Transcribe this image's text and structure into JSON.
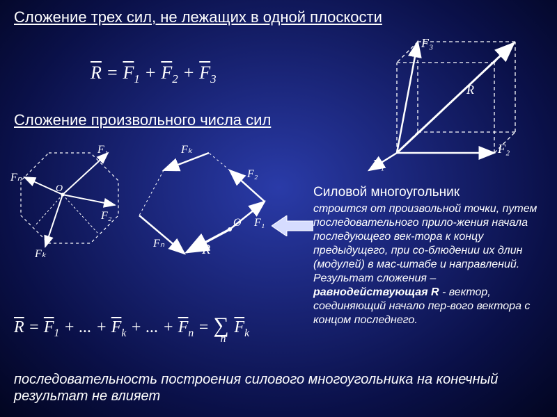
{
  "title": "Сложение трех сил, не лежащих в одной плоскости",
  "formula1_html": "<span class='bar'>R</span> = <span class='bar'>F</span><span class='sub'>1</span> + <span class='bar'>F</span><span class='sub'>2</span> + <span class='bar'>F</span><span class='sub'>3</span>",
  "subtitle": "Сложение произвольного числа сил",
  "cube": {
    "stroke_dash": "#ffffff",
    "stroke_solid": "#ffffff",
    "labels": {
      "F1": "F₁",
      "F2": "F₂",
      "F3": "F₃",
      "R": "R"
    },
    "label_color": "#ffffff"
  },
  "star": {
    "labels": {
      "F1": "F₁",
      "F2": "F₂",
      "Fk": "Fₖ",
      "Fn": "Fₙ",
      "O": "O"
    }
  },
  "polygon": {
    "labels": {
      "F1": "F₁",
      "F2": "F₂",
      "Fk": "Fₖ",
      "Fn": "Fₙ",
      "R": "R",
      "O": "O"
    }
  },
  "right_caption": "Силовой многоугольник",
  "right_body_html": "строится от произвольной точки, путем последовательного прило-жения начала последующего век-тора к концу предыдущего, при со-блюдении их длин (модулей) в мас-штабе и направлений. Результат сложения – <span class='hl'>равнодействующая R</span> - вектор, соединяющий начало пер-вого вектора с концом последнего.",
  "formula2_html": "<span class='bar'>R</span> = <span class='bar'>F</span><span class='sub'>1</span> + ... + <span class='bar'>F</span><span class='sub'>k</span> + ... + <span class='bar'>F</span><span class='sub'>n</span> = <span style='font-size:1.3em'>∑</span><span class='sub' style='position:relative;left:-12px;top:8px'>n</span><span class='bar'>F</span><span class='sub'>k</span>",
  "footer": "последовательность построения силового многоугольника на конечный результат не влияет",
  "colors": {
    "text": "#ffffff",
    "accent": "#ffffff",
    "arrow_fill": "#cfd8ff"
  }
}
